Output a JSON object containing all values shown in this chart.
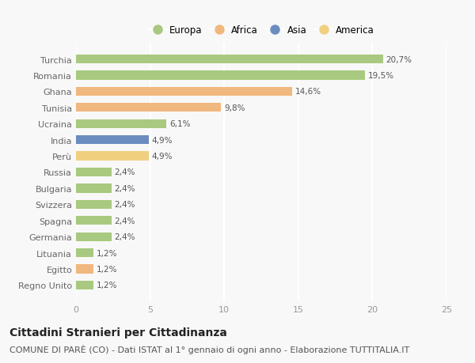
{
  "countries": [
    "Turchia",
    "Romania",
    "Ghana",
    "Tunisia",
    "Ucraina",
    "India",
    "Perù",
    "Russia",
    "Bulgaria",
    "Svizzera",
    "Spagna",
    "Germania",
    "Lituania",
    "Egitto",
    "Regno Unito"
  ],
  "values": [
    20.7,
    19.5,
    14.6,
    9.8,
    6.1,
    4.9,
    4.9,
    2.4,
    2.4,
    2.4,
    2.4,
    2.4,
    1.2,
    1.2,
    1.2
  ],
  "labels": [
    "20,7%",
    "19,5%",
    "14,6%",
    "9,8%",
    "6,1%",
    "4,9%",
    "4,9%",
    "2,4%",
    "2,4%",
    "2,4%",
    "2,4%",
    "2,4%",
    "1,2%",
    "1,2%",
    "1,2%"
  ],
  "continents": [
    "Europa",
    "Europa",
    "Africa",
    "Africa",
    "Europa",
    "Asia",
    "America",
    "Europa",
    "Europa",
    "Europa",
    "Europa",
    "Europa",
    "Europa",
    "Africa",
    "Europa"
  ],
  "colors": {
    "Europa": "#a8c97f",
    "Africa": "#f0b77e",
    "Asia": "#6b8cbf",
    "America": "#f0d080"
  },
  "legend_order": [
    "Europa",
    "Africa",
    "Asia",
    "America"
  ],
  "xlim": [
    0,
    25
  ],
  "xticks": [
    0,
    5,
    10,
    15,
    20,
    25
  ],
  "title": "Cittadini Stranieri per Cittadinanza",
  "subtitle": "COMUNE DI PARÈ (CO) - Dati ISTAT al 1° gennaio di ogni anno - Elaborazione TUTTITALIA.IT",
  "bg_color": "#f8f8f8",
  "grid_color": "#ffffff",
  "bar_height": 0.55,
  "title_fontsize": 10,
  "subtitle_fontsize": 8,
  "label_fontsize": 7.5,
  "tick_fontsize": 8,
  "legend_fontsize": 8.5
}
